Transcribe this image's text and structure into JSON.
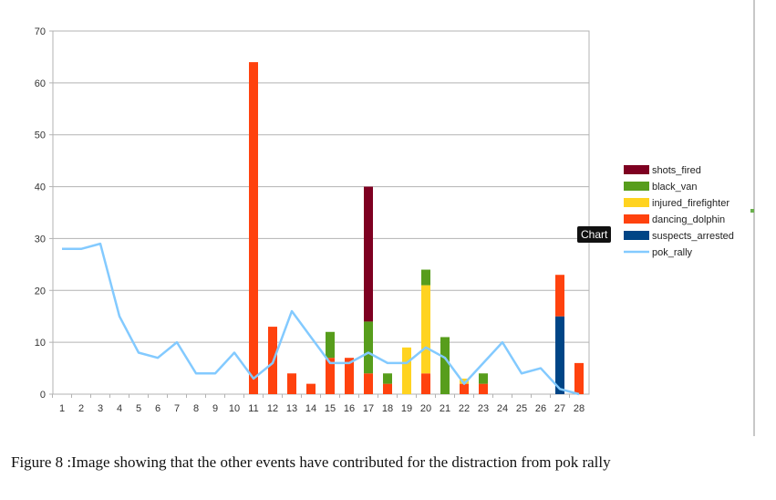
{
  "chart_data": {
    "type": "bar",
    "stacked": true,
    "categories": [
      "1",
      "2",
      "3",
      "4",
      "5",
      "6",
      "7",
      "8",
      "9",
      "10",
      "11",
      "12",
      "13",
      "14",
      "15",
      "16",
      "17",
      "18",
      "19",
      "20",
      "21",
      "22",
      "23",
      "24",
      "25",
      "26",
      "27",
      "28"
    ],
    "ylim": [
      0,
      70
    ],
    "yticks": [
      0,
      10,
      20,
      30,
      40,
      50,
      60,
      70
    ],
    "grid": "horizontal",
    "legend_position": "right",
    "series": [
      {
        "name": "suspects_arrested",
        "type": "bar",
        "color": "#004586",
        "values": [
          0,
          0,
          0,
          0,
          0,
          0,
          0,
          0,
          0,
          0,
          0,
          0,
          0,
          0,
          0,
          0,
          0,
          0,
          0,
          0,
          0,
          0,
          0,
          0,
          0,
          0,
          15,
          0
        ]
      },
      {
        "name": "dancing_dolphin",
        "type": "bar",
        "color": "#ff420e",
        "values": [
          0,
          0,
          0,
          0,
          0,
          0,
          0,
          0,
          0,
          0,
          64,
          13,
          4,
          2,
          7,
          7,
          4,
          2,
          0,
          4,
          0,
          2,
          2,
          0,
          0,
          0,
          8,
          6
        ]
      },
      {
        "name": "injured_firefighter",
        "type": "bar",
        "color": "#ffd320",
        "values": [
          0,
          0,
          0,
          0,
          0,
          0,
          0,
          0,
          0,
          0,
          0,
          0,
          0,
          0,
          0,
          0,
          0,
          0,
          9,
          17,
          0,
          1,
          0,
          0,
          0,
          0,
          0,
          0
        ]
      },
      {
        "name": "black_van",
        "type": "bar",
        "color": "#579d1c",
        "values": [
          0,
          0,
          0,
          0,
          0,
          0,
          0,
          0,
          0,
          0,
          0,
          0,
          0,
          0,
          5,
          0,
          10,
          2,
          0,
          3,
          11,
          0,
          2,
          0,
          0,
          0,
          0,
          0
        ]
      },
      {
        "name": "shots_fired",
        "type": "bar",
        "color": "#7e0021",
        "values": [
          0,
          0,
          0,
          0,
          0,
          0,
          0,
          0,
          0,
          0,
          0,
          0,
          0,
          0,
          0,
          0,
          26,
          0,
          0,
          0,
          0,
          0,
          0,
          0,
          0,
          0,
          0,
          0
        ]
      },
      {
        "name": "pok_rally",
        "type": "line",
        "color": "#83caff",
        "values": [
          28,
          28,
          29,
          15,
          8,
          7,
          10,
          4,
          4,
          8,
          3,
          6,
          16,
          11,
          6,
          6,
          8,
          6,
          6,
          9,
          7,
          2,
          6,
          10,
          4,
          5,
          1,
          0
        ]
      }
    ],
    "legend_order": [
      "shots_fired",
      "black_van",
      "injured_firefighter",
      "dancing_dolphin",
      "suspects_arrested",
      "pok_rally"
    ]
  },
  "tooltip": "Chart",
  "caption": "Figure 8 :Image showing that the other events have contributed for the distraction from pok rally"
}
